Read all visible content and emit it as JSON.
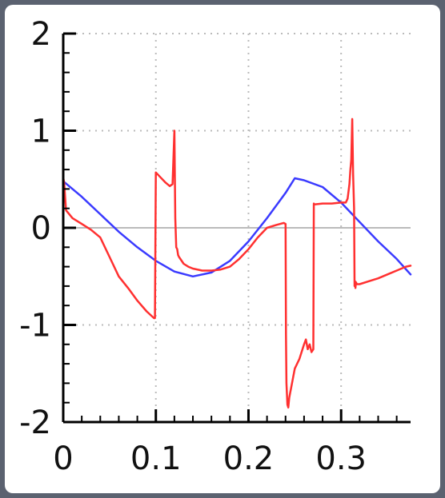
{
  "chart_data": {
    "type": "line",
    "title": "",
    "xlabel": "",
    "ylabel": "",
    "xlim": [
      0,
      0.375
    ],
    "ylim": [
      -2,
      2
    ],
    "x_ticks": [
      0,
      0.1,
      0.2,
      0.3
    ],
    "x_tick_labels": [
      "0",
      "0.1",
      "0.2",
      "0.3"
    ],
    "y_ticks": [
      -2,
      -1,
      0,
      1,
      2
    ],
    "y_tick_labels": [
      "-2",
      "-1",
      "0",
      "1",
      "2"
    ],
    "grid": true,
    "legend": "none",
    "colors": {
      "series_a": "#3a3aff",
      "series_b": "#ff3030",
      "zero_line": "#bbbbbb",
      "grid": "#bbbbbb"
    },
    "series": [
      {
        "color": "#3a3aff",
        "x": [
          0,
          0.02,
          0.04,
          0.06,
          0.08,
          0.1,
          0.12,
          0.14,
          0.16,
          0.18,
          0.2,
          0.22,
          0.24,
          0.25,
          0.26,
          0.28,
          0.3,
          0.32,
          0.34,
          0.36,
          0.375
        ],
        "y": [
          0.48,
          0.32,
          0.14,
          -0.04,
          -0.2,
          -0.34,
          -0.45,
          -0.5,
          -0.46,
          -0.34,
          -0.14,
          0.1,
          0.36,
          0.51,
          0.49,
          0.42,
          0.26,
          0.06,
          -0.14,
          -0.32,
          -0.48
        ]
      },
      {
        "color": "#ff3030",
        "x": [
          0,
          0.001,
          0.003,
          0.01,
          0.02,
          0.03,
          0.04,
          0.05,
          0.06,
          0.07,
          0.08,
          0.09,
          0.098,
          0.099,
          0.1,
          0.105,
          0.11,
          0.115,
          0.118,
          0.12,
          0.1205,
          0.121,
          0.122,
          0.123,
          0.124,
          0.125,
          0.13,
          0.135,
          0.14,
          0.15,
          0.16,
          0.17,
          0.18,
          0.19,
          0.2,
          0.21,
          0.22,
          0.23,
          0.238,
          0.24,
          0.2405,
          0.241,
          0.242,
          0.243,
          0.244,
          0.245,
          0.246,
          0.248,
          0.25,
          0.255,
          0.26,
          0.262,
          0.264,
          0.266,
          0.268,
          0.27,
          0.2705,
          0.271,
          0.28,
          0.29,
          0.3,
          0.303,
          0.305,
          0.307,
          0.309,
          0.31,
          0.311,
          0.312,
          0.313,
          0.314,
          0.3145,
          0.315,
          0.3155,
          0.316,
          0.317,
          0.318,
          0.32,
          0.33,
          0.34,
          0.35,
          0.36,
          0.37,
          0.375
        ],
        "y": [
          0.52,
          0.46,
          0.18,
          0.1,
          0.04,
          -0.02,
          -0.1,
          -0.3,
          -0.5,
          -0.62,
          -0.75,
          -0.86,
          -0.93,
          -0.93,
          0.57,
          0.52,
          0.47,
          0.43,
          0.45,
          1.0,
          0.5,
          0.1,
          -0.2,
          -0.22,
          -0.28,
          -0.3,
          -0.37,
          -0.4,
          -0.42,
          -0.44,
          -0.44,
          -0.43,
          -0.4,
          -0.32,
          -0.22,
          -0.1,
          0.0,
          0.03,
          0.05,
          0.04,
          -1.1,
          -1.6,
          -1.82,
          -1.85,
          -1.75,
          -1.7,
          -1.65,
          -1.55,
          -1.45,
          -1.35,
          -1.2,
          -1.15,
          -1.25,
          -1.2,
          -1.28,
          -1.25,
          0.25,
          0.24,
          0.25,
          0.25,
          0.26,
          0.26,
          0.26,
          0.3,
          0.45,
          0.6,
          0.7,
          1.12,
          0.55,
          0.2,
          -0.6,
          -0.55,
          -0.62,
          -0.56,
          -0.58,
          -0.58,
          -0.58,
          -0.55,
          -0.52,
          -0.48,
          -0.44,
          -0.4,
          -0.39
        ]
      }
    ]
  }
}
